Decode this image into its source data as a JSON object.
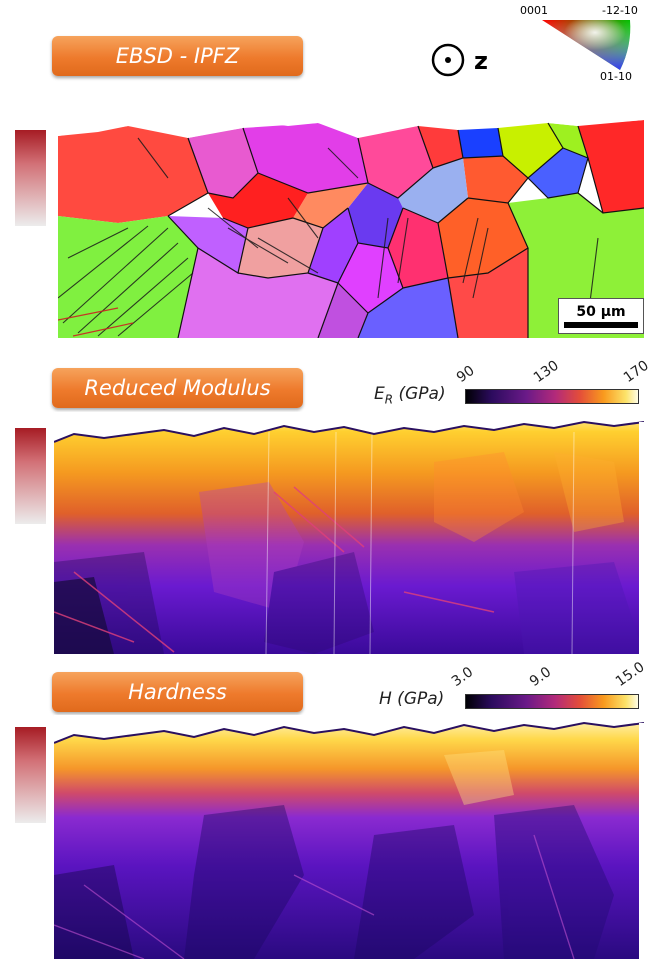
{
  "panels": {
    "ebsd": {
      "title": "EBSD - IPFZ",
      "scalebar": "50 µm"
    },
    "modulus": {
      "title": "Reduced Modulus",
      "cbar_symbol": "E",
      "cbar_sub": "R",
      "cbar_unit": " (GPa)",
      "ticks": [
        "90",
        "130",
        "170"
      ]
    },
    "hardness": {
      "title": "Hardness",
      "cbar_label": "H (GPa)",
      "ticks": [
        "3.0",
        "9.0",
        "15.0"
      ]
    }
  },
  "axis_marker": {
    "letter": "z"
  },
  "ipf_triangle": {
    "labels": {
      "top_left": "0001",
      "top_right": "-12-10",
      "bottom": "01-10"
    }
  },
  "colors": {
    "banner": "#ee7a2c",
    "side_marker_top": "#a61c24"
  }
}
